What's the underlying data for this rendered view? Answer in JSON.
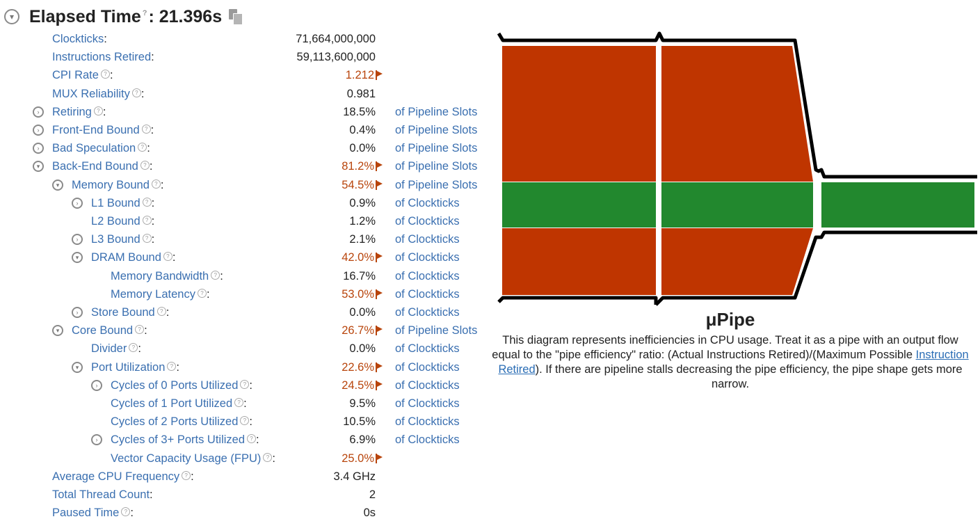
{
  "header": {
    "title_label": "Elapsed Time",
    "title_value": ": 21.396s",
    "help_mark": "?"
  },
  "metrics": [
    {
      "label": "Clockticks",
      "help": false,
      "value": "71,664,000,000",
      "unit": "",
      "warn": false,
      "expander": "none",
      "level": 0
    },
    {
      "label": "Instructions Retired",
      "help": false,
      "value": "59,113,600,000",
      "unit": "",
      "warn": false,
      "expander": "none",
      "level": 0
    },
    {
      "label": "CPI Rate",
      "help": true,
      "value": "1.212",
      "unit": "",
      "warn": true,
      "expander": "none",
      "level": 0
    },
    {
      "label": "MUX Reliability",
      "help": true,
      "value": "0.981",
      "unit": "",
      "warn": false,
      "expander": "none",
      "level": 0
    },
    {
      "label": "Retiring",
      "help": true,
      "value": "18.5%",
      "unit": "of Pipeline Slots",
      "warn": false,
      "expander": "collapsed",
      "level": 0
    },
    {
      "label": "Front-End Bound",
      "help": true,
      "value": "0.4%",
      "unit": "of Pipeline Slots",
      "warn": false,
      "expander": "collapsed",
      "level": 0
    },
    {
      "label": "Bad Speculation",
      "help": true,
      "value": "0.0%",
      "unit": "of Pipeline Slots",
      "warn": false,
      "expander": "collapsed",
      "level": 0
    },
    {
      "label": "Back-End Bound",
      "help": true,
      "value": "81.2%",
      "unit": "of Pipeline Slots",
      "warn": true,
      "expander": "expanded",
      "level": 0
    },
    {
      "label": "Memory Bound",
      "help": true,
      "value": "54.5%",
      "unit": "of Pipeline Slots",
      "warn": true,
      "expander": "expanded",
      "level": 1
    },
    {
      "label": "L1 Bound",
      "help": true,
      "value": "0.9%",
      "unit": "of Clockticks",
      "warn": false,
      "expander": "collapsed",
      "level": 2
    },
    {
      "label": "L2 Bound",
      "help": true,
      "value": "1.2%",
      "unit": "of Clockticks",
      "warn": false,
      "expander": "none",
      "level": 2
    },
    {
      "label": "L3 Bound",
      "help": true,
      "value": "2.1%",
      "unit": "of Clockticks",
      "warn": false,
      "expander": "collapsed",
      "level": 2
    },
    {
      "label": "DRAM Bound",
      "help": true,
      "value": "42.0%",
      "unit": "of Clockticks",
      "warn": true,
      "expander": "expanded",
      "level": 2
    },
    {
      "label": "Memory Bandwidth",
      "help": true,
      "value": "16.7%",
      "unit": "of Clockticks",
      "warn": false,
      "expander": "none",
      "level": 3
    },
    {
      "label": "Memory Latency",
      "help": true,
      "value": "53.0%",
      "unit": "of Clockticks",
      "warn": true,
      "expander": "none",
      "level": 3
    },
    {
      "label": "Store Bound",
      "help": true,
      "value": "0.0%",
      "unit": "of Clockticks",
      "warn": false,
      "expander": "collapsed",
      "level": 2
    },
    {
      "label": "Core Bound",
      "help": true,
      "value": "26.7%",
      "unit": "of Pipeline Slots",
      "warn": true,
      "expander": "expanded",
      "level": 1
    },
    {
      "label": "Divider",
      "help": true,
      "value": "0.0%",
      "unit": "of Clockticks",
      "warn": false,
      "expander": "none",
      "level": 2
    },
    {
      "label": "Port Utilization",
      "help": true,
      "value": "22.6%",
      "unit": "of Clockticks",
      "warn": true,
      "expander": "expanded",
      "level": 2
    },
    {
      "label": "Cycles of 0 Ports Utilized",
      "help": true,
      "value": "24.5%",
      "unit": "of Clockticks",
      "warn": true,
      "expander": "collapsed",
      "level": 3
    },
    {
      "label": "Cycles of 1 Port Utilized",
      "help": true,
      "value": "9.5%",
      "unit": "of Clockticks",
      "warn": false,
      "expander": "none",
      "level": 3
    },
    {
      "label": "Cycles of 2 Ports Utilized",
      "help": true,
      "value": "10.5%",
      "unit": "of Clockticks",
      "warn": false,
      "expander": "none",
      "level": 3
    },
    {
      "label": "Cycles of 3+ Ports Utilized",
      "help": true,
      "value": "6.9%",
      "unit": "of Clockticks",
      "warn": false,
      "expander": "collapsed",
      "level": 3
    },
    {
      "label": "Vector Capacity Usage (FPU)",
      "help": true,
      "value": "25.0%",
      "unit": "",
      "warn": true,
      "expander": "none",
      "level": 3
    },
    {
      "label": "Average CPU Frequency",
      "help": true,
      "value": "3.4 GHz",
      "unit": "",
      "warn": false,
      "expander": "none",
      "level": 0
    },
    {
      "label": "Total Thread Count",
      "help": false,
      "value": "2",
      "unit": "",
      "warn": false,
      "expander": "none",
      "level": 0
    },
    {
      "label": "Paused Time",
      "help": true,
      "value": "0s",
      "unit": "",
      "warn": false,
      "expander": "none",
      "level": 0
    }
  ],
  "upipe": {
    "title": "μPipe",
    "desc_before_link": "This diagram represents inefficiencies in CPU usage. Treat it as a pipe with an output flow equal to the \"pipe efficiency\" ratio: (Actual Instructions Retired)/(Maximum Possible ",
    "desc_link": "Instruction Retired",
    "desc_after_link": "). If there are pipeline stalls decreasing the pipe efficiency, the pipe shape gets more narrow.",
    "colors": {
      "stall": "#bf3500",
      "flow": "#22882e",
      "outline": "#000000"
    }
  }
}
